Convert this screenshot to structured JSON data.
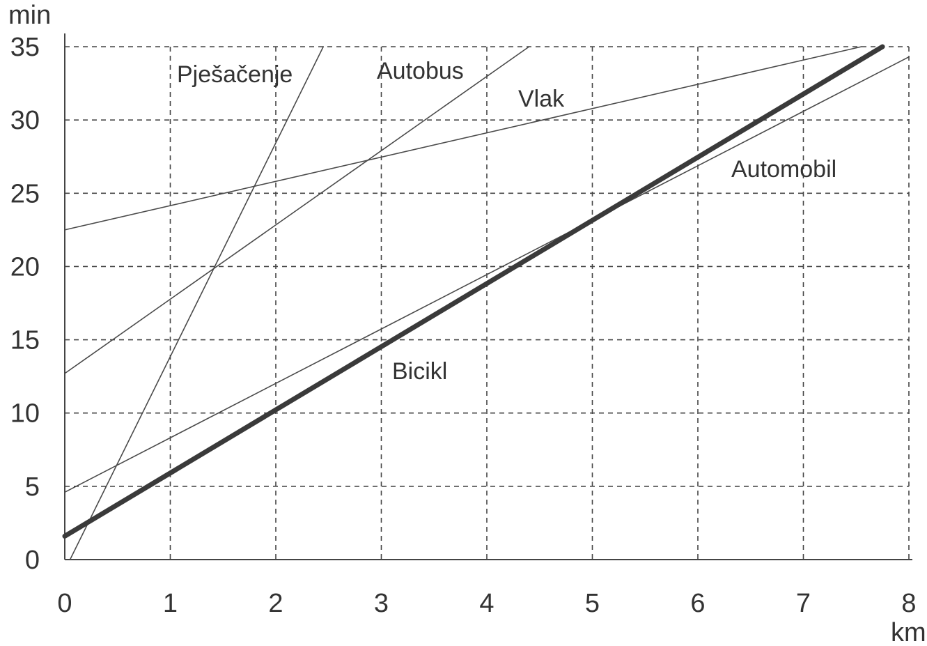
{
  "chart_data": {
    "type": "line",
    "xlabel": "km",
    "ylabel": "min",
    "xlim": [
      0,
      8
    ],
    "ylim": [
      0,
      35
    ],
    "x_ticks": [
      "0",
      "1",
      "2",
      "3",
      "4",
      "5",
      "6",
      "7",
      "8"
    ],
    "y_ticks": [
      "0",
      "5",
      "10",
      "15",
      "20",
      "25",
      "30",
      "35"
    ],
    "grid": true,
    "series": [
      {
        "name": "Pješačenje",
        "x": [
          0.05,
          2.45
        ],
        "y": [
          0,
          35
        ],
        "emphasis": false
      },
      {
        "name": "Autobus",
        "x": [
          0,
          4.4
        ],
        "y": [
          12.7,
          35
        ],
        "emphasis": false
      },
      {
        "name": "Vlak",
        "x": [
          0,
          7.55
        ],
        "y": [
          22.5,
          35
        ],
        "emphasis": false
      },
      {
        "name": "Automobil",
        "x": [
          0,
          8
        ],
        "y": [
          4.6,
          34.3
        ],
        "emphasis": false
      },
      {
        "name": "Bicikl",
        "x": [
          0,
          7.75
        ],
        "y": [
          1.6,
          35
        ],
        "emphasis": true
      }
    ],
    "colors": {
      "thin_line": "#4a4a4a",
      "thick_line": "#3a3a3a",
      "grid": "#444444"
    }
  }
}
